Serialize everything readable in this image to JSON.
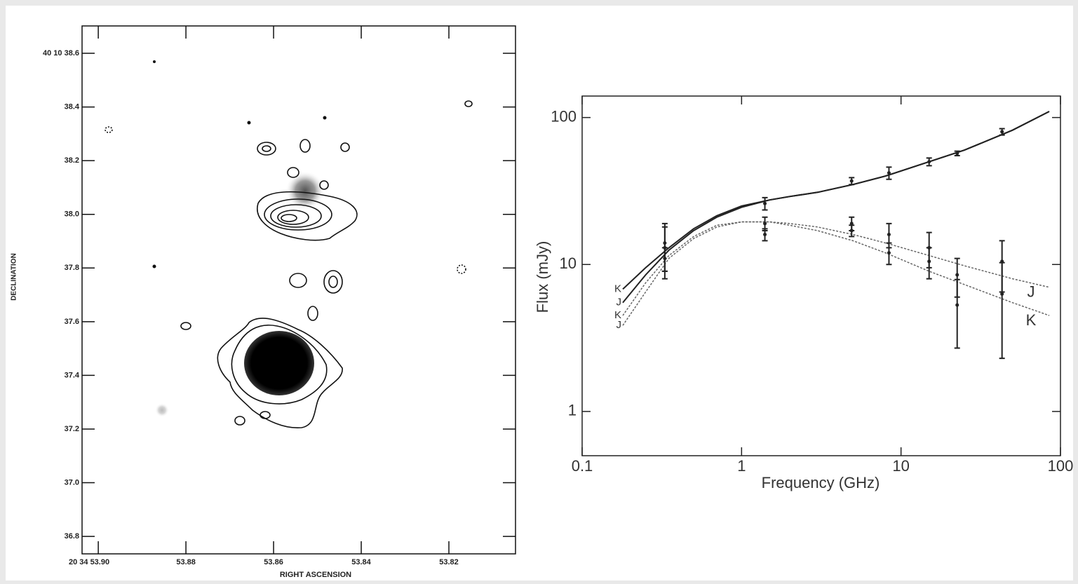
{
  "chart_data": [
    {
      "type": "contour",
      "xlabel": "RIGHT ASCENSION",
      "ylabel": "DECLINATION",
      "xlim": [
        53.9037,
        53.8048
      ],
      "ylim": [
        36.735,
        38.702
      ],
      "xticks": [
        {
          "value": 53.9,
          "label": "20 34 53.90"
        },
        53.88,
        53.86,
        53.84,
        53.82
      ],
      "yticks": [
        {
          "value": 38.6,
          "label": "40 10 38.6"
        },
        38.4,
        38.2,
        {
          "value": 38.0,
          "label": "38.0"
        },
        37.8,
        37.6,
        37.4,
        37.2,
        {
          "value": 37.0,
          "label": "37.0"
        },
        36.8
      ]
    },
    {
      "type": "line",
      "log_x": true,
      "log_y": true,
      "xlabel": "Frequency (GHz)",
      "ylabel": "Flux (mJy)",
      "xlim": [
        0.1,
        100
      ],
      "ylim": [
        0.5,
        140
      ],
      "xticks": [
        0.1,
        1,
        10,
        100
      ],
      "yticks": [
        1,
        10,
        100
      ],
      "x": [
        0.18,
        0.25,
        0.35,
        0.5,
        0.7,
        1,
        1.5,
        2,
        3,
        5,
        8,
        15,
        25,
        50,
        85
      ],
      "series": [
        {
          "name": "K",
          "color": "#222222",
          "dash": false,
          "end_label": false,
          "values": [
            6.8,
            9.5,
            13,
            17.5,
            21.5,
            25,
            27.5,
            29,
            31,
            35,
            40,
            50,
            60,
            82,
            110
          ]
        },
        {
          "name": "J",
          "color": "#222222",
          "dash": false,
          "end_label": false,
          "values": [
            5.5,
            8.5,
            12.5,
            17,
            21,
            24.5,
            27.5,
            29,
            31,
            35,
            40,
            50,
            60,
            82,
            110
          ]
        },
        {
          "name": "K",
          "color": "#666666",
          "dash": true,
          "end_label": true,
          "values": [
            4.5,
            7.5,
            11.5,
            15.5,
            18.5,
            19.5,
            19.5,
            18.5,
            17,
            14.5,
            12,
            9,
            7.3,
            5.5,
            4.5
          ]
        },
        {
          "name": "J",
          "color": "#666666",
          "dash": true,
          "end_label": true,
          "values": [
            3.85,
            6.5,
            11,
            15,
            18,
            19.5,
            19.5,
            19,
            18,
            16,
            14,
            11.5,
            9.8,
            8,
            7
          ]
        }
      ],
      "points": [
        {
          "x": [
            0.33,
            1.4,
            4.9,
            8.4,
            15,
            22.5,
            43
          ],
          "values": [
            13,
            26,
            37,
            42,
            50,
            57,
            80
          ],
          "errors": [
            5,
            2.5,
            2,
            4,
            3,
            2,
            4
          ]
        },
        {
          "x": [
            0.33,
            1.4,
            4.9,
            8.4,
            15,
            22.5,
            43
          ],
          "values": [
            14,
            19,
            19,
            16,
            13,
            8.5,
            10.5
          ],
          "errors": [
            5,
            2,
            2,
            3,
            3.5,
            2.5,
            4
          ]
        },
        {
          "x": [
            0.33,
            1.4,
            4.9,
            8.4,
            15,
            22.5,
            43
          ],
          "values": [
            11,
            16,
            17,
            12,
            10.5,
            5.3,
            6.3
          ],
          "errors": [
            2,
            1.5,
            1.5,
            2,
            2.5,
            2.6,
            4
          ]
        }
      ]
    }
  ]
}
